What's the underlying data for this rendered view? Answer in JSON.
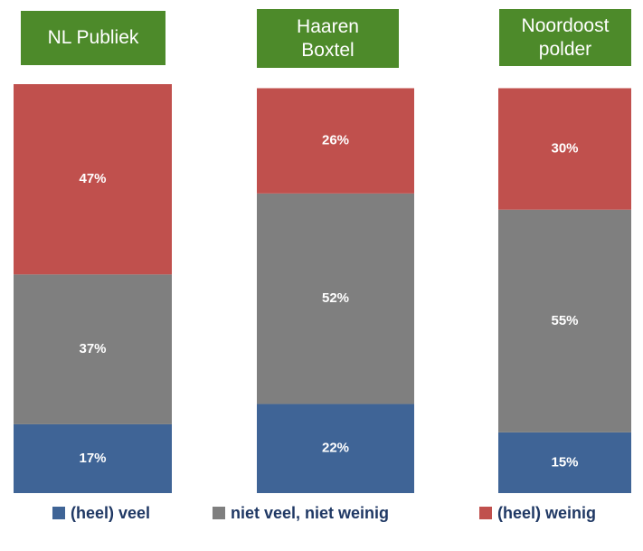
{
  "chart_data": {
    "type": "stacked_bar",
    "categories": [
      "NL Publiek",
      "Haaren\nBoxtel",
      "Noordoost\npolder"
    ],
    "series": [
      {
        "name": "(heel) veel",
        "color": "#3f6496",
        "values": [
          17,
          22,
          15
        ],
        "value_labels": [
          "17%",
          "22%",
          "15%"
        ]
      },
      {
        "name": "niet veel, niet weinig",
        "color": "#7f7f7f",
        "values": [
          37,
          52,
          55
        ],
        "value_labels": [
          "37%",
          "52%",
          "55%"
        ]
      },
      {
        "name": "(heel) weinig",
        "color": "#c0504d",
        "values": [
          47,
          26,
          30
        ],
        "value_labels": [
          "47%",
          "26%",
          "30%"
        ]
      }
    ],
    "legend": "bottom",
    "title_box_color": "#4d8a2a"
  }
}
